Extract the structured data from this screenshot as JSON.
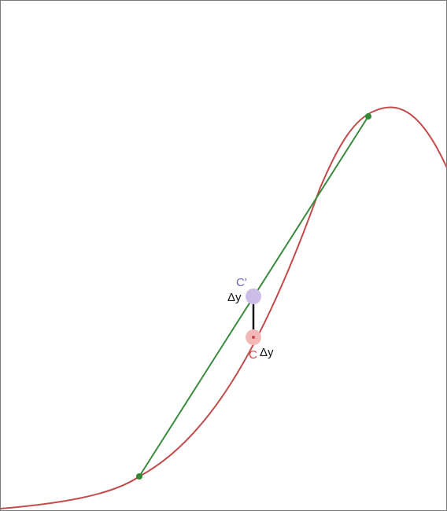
{
  "diagram": {
    "labels": {
      "c_prime": "C'",
      "c": "C",
      "delta_upper": "Δy",
      "delta_lower": "Δy"
    },
    "colors": {
      "curve": "#c44b4b",
      "chord": "#3a8a3e",
      "chord_endpoint": "#2f8a35",
      "point_c": "#f2b8b8",
      "point_c_prime": "#cbbde6",
      "label_c": "#d0463f",
      "label_c_prime": "#7a63b8",
      "delta_segment": "#111111",
      "delta_text": "#111111"
    }
  }
}
